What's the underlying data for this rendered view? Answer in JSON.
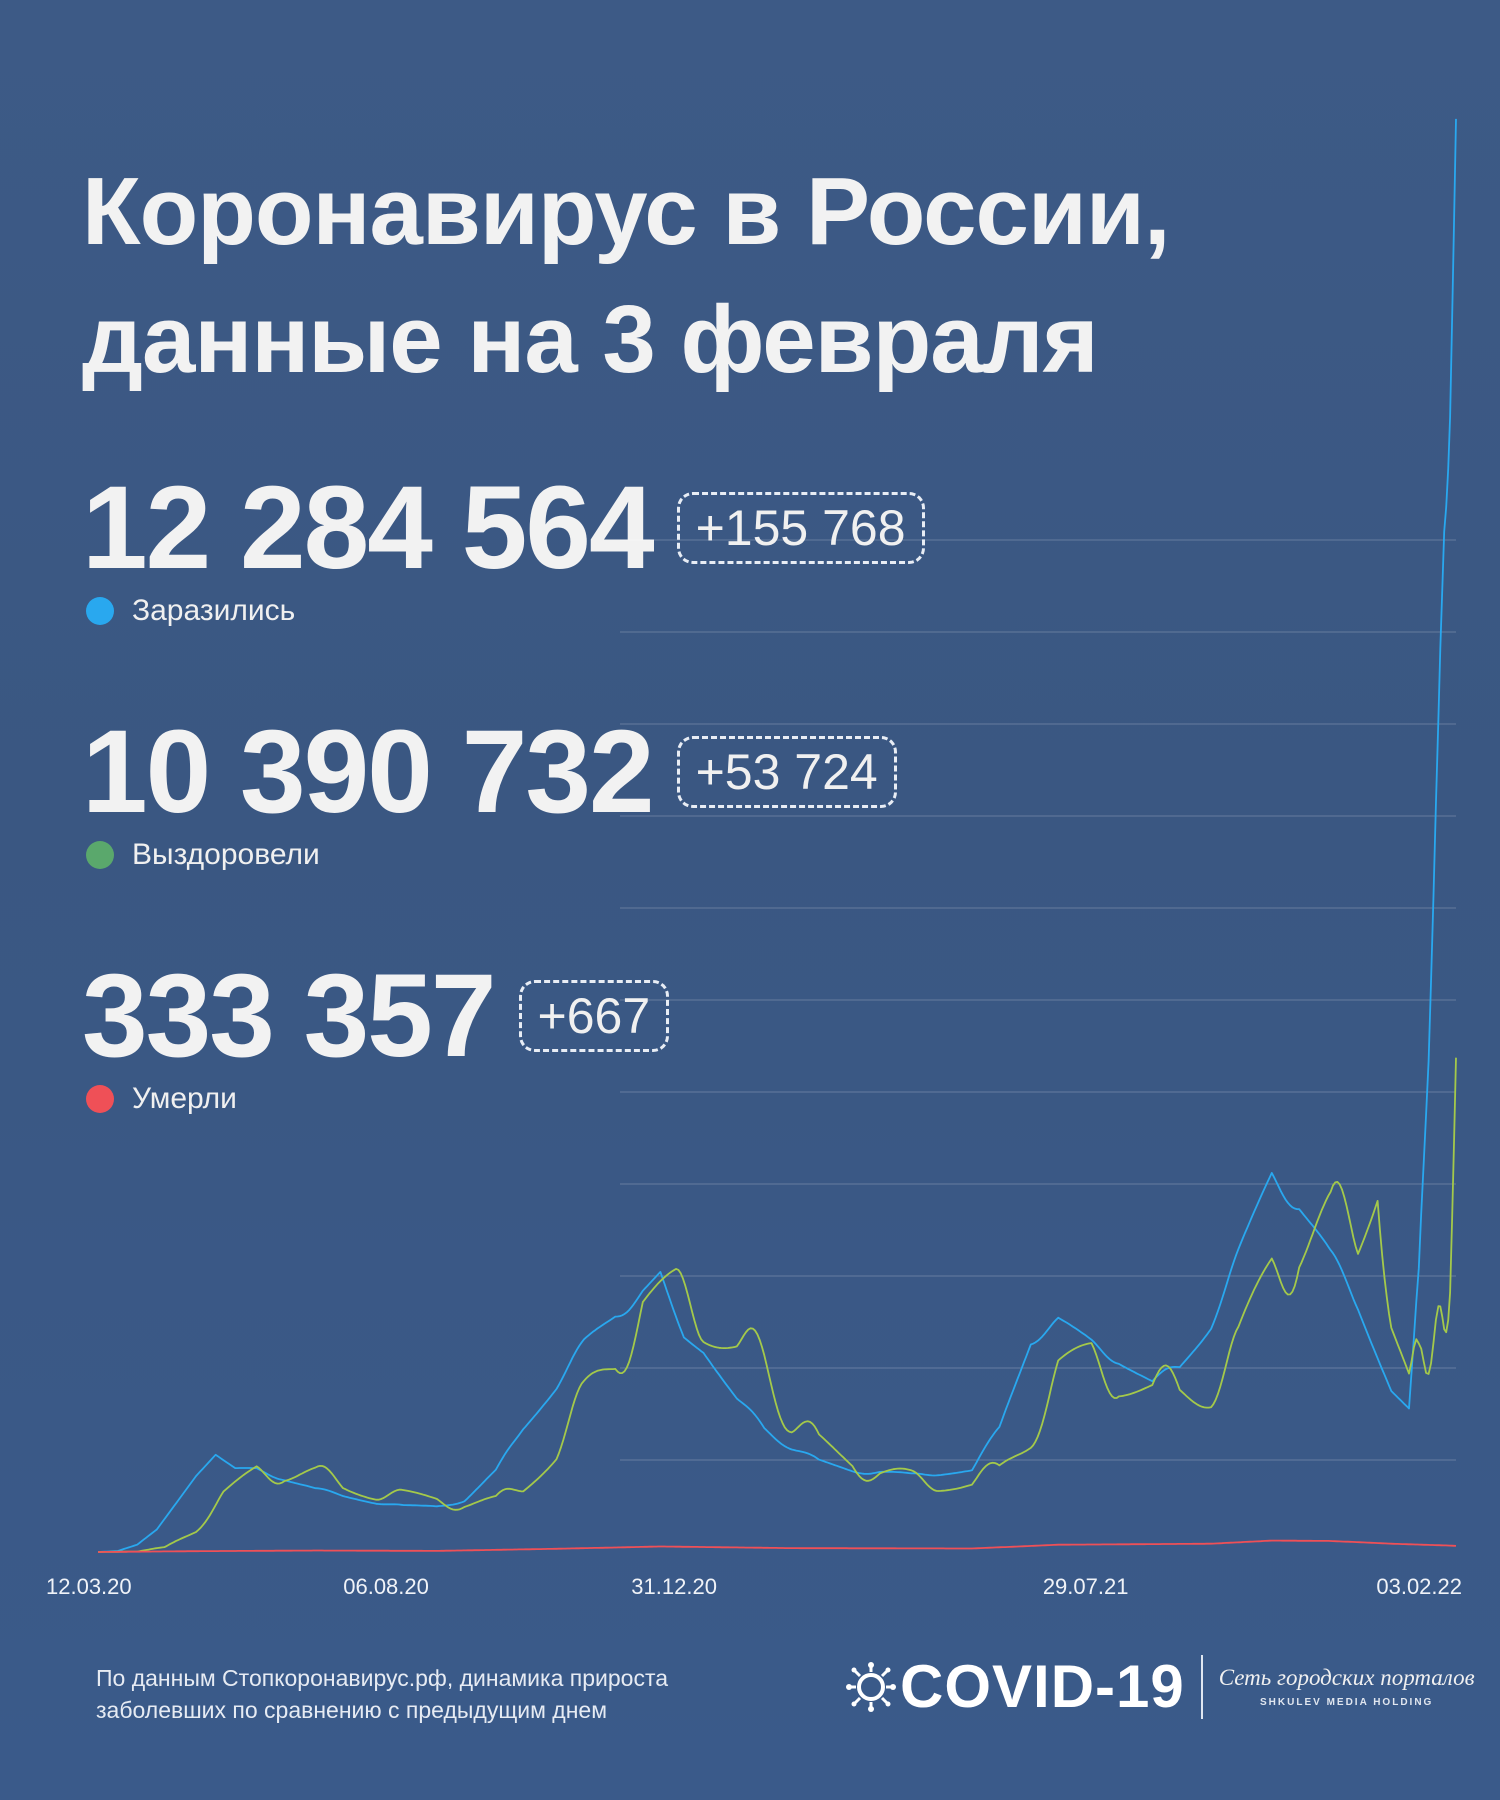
{
  "title": {
    "line1": "Коронавирус в России,",
    "line2": "данные на 3 февраля"
  },
  "stats": [
    {
      "value": "12 284 564",
      "delta": "+155 768",
      "label": "Заразились",
      "color": "#29a8ef"
    },
    {
      "value": "10 390 732",
      "delta": "+53 724",
      "label": "Выздоровели",
      "color": "#5aa86c"
    },
    {
      "value": "333 357",
      "delta": "+667",
      "label": "Умерли",
      "color": "#ef5057"
    }
  ],
  "footnote": {
    "line1": "По данным Стопкоронавирус.рф, динамика прироста",
    "line2": "заболевших по сравнению с предыдущим днем"
  },
  "brand": {
    "logo": "COVID-19",
    "subtitle": "Сеть городских порталов",
    "holding": "SHKULEV MEDIA HOLDING"
  },
  "chart_data": {
    "type": "line",
    "x_start": "12.03.20",
    "x_end": "03.02.22",
    "x_ticks": [
      "12.03.20",
      "06.08.20",
      "31.12.20",
      "29.07.21",
      "03.02.22"
    ],
    "grid": true,
    "y_axis_labels": false,
    "ylim": [
      0,
      160000
    ],
    "series": [
      {
        "name": "Заразились",
        "color": "#29a8ef",
        "points": [
          [
            "12.03.20",
            0
          ],
          [
            "22.03.20",
            100
          ],
          [
            "01.04.20",
            800
          ],
          [
            "11.04.20",
            2500
          ],
          [
            "21.04.20",
            5500
          ],
          [
            "01.05.20",
            8500
          ],
          [
            "11.05.20",
            10800
          ],
          [
            "21.05.20",
            9200
          ],
          [
            "01.06.20",
            8900
          ],
          [
            "15.06.20",
            8000
          ],
          [
            "01.07.20",
            6800
          ],
          [
            "15.07.20",
            6200
          ],
          [
            "01.08.20",
            5400
          ],
          [
            "15.08.20",
            4950
          ],
          [
            "01.09.20",
            4900
          ],
          [
            "15.09.20",
            5600
          ],
          [
            "01.10.20",
            8700
          ],
          [
            "15.10.20",
            13700
          ],
          [
            "01.11.20",
            18200
          ],
          [
            "15.11.20",
            22500
          ],
          [
            "01.12.20",
            26000
          ],
          [
            "15.12.20",
            28000
          ],
          [
            "24.12.20",
            29900
          ],
          [
            "05.01.21",
            24000
          ],
          [
            "15.01.21",
            22300
          ],
          [
            "01.02.21",
            17000
          ],
          [
            "15.02.21",
            13200
          ],
          [
            "01.03.21",
            11400
          ],
          [
            "15.03.21",
            9800
          ],
          [
            "01.04.21",
            8800
          ],
          [
            "15.04.21",
            8700
          ],
          [
            "01.05.21",
            8300
          ],
          [
            "15.05.21",
            8600
          ],
          [
            "01.06.21",
            9000
          ],
          [
            "15.06.21",
            13400
          ],
          [
            "01.07.21",
            23200
          ],
          [
            "15.07.21",
            24800
          ],
          [
            "01.08.21",
            22500
          ],
          [
            "15.08.21",
            21000
          ],
          [
            "01.09.21",
            18600
          ],
          [
            "15.09.21",
            20000
          ],
          [
            "01.10.21",
            25000
          ],
          [
            "15.10.21",
            32000
          ],
          [
            "01.11.21",
            40500
          ],
          [
            "15.11.21",
            38000
          ],
          [
            "01.12.21",
            32000
          ],
          [
            "15.12.21",
            27000
          ],
          [
            "01.01.22",
            18000
          ],
          [
            "10.01.22",
            16000
          ],
          [
            "15.01.22",
            30000
          ],
          [
            "20.01.22",
            55000
          ],
          [
            "25.01.22",
            88000
          ],
          [
            "28.01.22",
            113000
          ],
          [
            "31.01.22",
            125000
          ],
          [
            "02.02.22",
            141000
          ],
          [
            "03.02.22",
            155768
          ]
        ]
      },
      {
        "name": "Выздоровели",
        "color": "#a4c94a",
        "points": [
          [
            "12.03.20",
            0
          ],
          [
            "01.04.20",
            50
          ],
          [
            "15.04.20",
            500
          ],
          [
            "01.05.20",
            2500
          ],
          [
            "15.05.20",
            5800
          ],
          [
            "01.06.20",
            8400
          ],
          [
            "15.06.20",
            8700
          ],
          [
            "01.07.20",
            8400
          ],
          [
            "15.07.20",
            7600
          ],
          [
            "01.08.20",
            6600
          ],
          [
            "15.08.20",
            5900
          ],
          [
            "01.09.20",
            5400
          ],
          [
            "15.09.20",
            5300
          ],
          [
            "01.10.20",
            5400
          ],
          [
            "15.10.20",
            7500
          ],
          [
            "01.11.20",
            11500
          ],
          [
            "15.11.20",
            16500
          ],
          [
            "01.12.20",
            21500
          ],
          [
            "15.12.20",
            25500
          ],
          [
            "01.01.21",
            27000
          ],
          [
            "15.01.21",
            26500
          ],
          [
            "01.02.21",
            24500
          ],
          [
            "15.02.21",
            19500
          ],
          [
            "01.03.21",
            14500
          ],
          [
            "15.03.21",
            11500
          ],
          [
            "01.04.21",
            9500
          ],
          [
            "15.04.21",
            8500
          ],
          [
            "01.05.21",
            7800
          ],
          [
            "15.05.21",
            7700
          ],
          [
            "01.06.21",
            7800
          ],
          [
            "15.06.21",
            8800
          ],
          [
            "01.07.21",
            13000
          ],
          [
            "15.07.21",
            18500
          ],
          [
            "01.08.21",
            20300
          ],
          [
            "15.08.21",
            19300
          ],
          [
            "01.09.21",
            18300
          ],
          [
            "15.09.21",
            17300
          ],
          [
            "01.10.21",
            18300
          ],
          [
            "15.10.21",
            21500
          ],
          [
            "01.11.21",
            29500
          ],
          [
            "15.11.21",
            34000
          ],
          [
            "01.12.21",
            35000
          ],
          [
            "15.12.21",
            36500
          ],
          [
            "25.12.21",
            40500
          ],
          [
            "01.01.22",
            28000
          ],
          [
            "10.01.22",
            22000
          ],
          [
            "15.01.22",
            20000
          ],
          [
            "20.01.22",
            22500
          ],
          [
            "25.01.22",
            23500
          ],
          [
            "28.01.22",
            26500
          ],
          [
            "31.01.22",
            30000
          ],
          [
            "02.02.22",
            40000
          ],
          [
            "03.02.22",
            53724
          ]
        ]
      },
      {
        "name": "Умерли",
        "color": "#ef5057",
        "points": [
          [
            "12.03.20",
            0
          ],
          [
            "01.05.20",
            90
          ],
          [
            "01.07.20",
            160
          ],
          [
            "01.09.20",
            120
          ],
          [
            "01.11.20",
            350
          ],
          [
            "24.12.20",
            600
          ],
          [
            "01.03.21",
            420
          ],
          [
            "01.06.21",
            380
          ],
          [
            "15.07.21",
            790
          ],
          [
            "01.10.21",
            900
          ],
          [
            "01.11.21",
            1240
          ],
          [
            "01.12.21",
            1200
          ],
          [
            "01.01.22",
            900
          ],
          [
            "01.02.22",
            690
          ],
          [
            "03.02.22",
            667
          ]
        ]
      }
    ]
  }
}
